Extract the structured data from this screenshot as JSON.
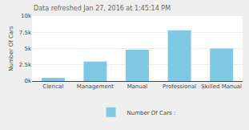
{
  "chart_data": {
    "type": "bar",
    "annotations": [
      "Data refreshed Jan 27, 2016 at 1:45:14 PM"
    ],
    "categories": [
      "Clerical",
      "Management",
      "Manual",
      "Professional",
      "Skilled Manual"
    ],
    "series": [
      {
        "name": "Number Of Cars :",
        "color": "#7EC8E3",
        "values": [
          500,
          3000,
          4800,
          7800,
          5000
        ]
      }
    ],
    "ylabel": "Number Of Cars",
    "ylim": [
      0,
      10000
    ],
    "yticks": [
      {
        "value": 0,
        "label": "0k"
      },
      {
        "value": 2500,
        "label": "2.5k"
      },
      {
        "value": 5000,
        "label": "5k"
      },
      {
        "value": 7500,
        "label": "7.5k"
      },
      {
        "value": 10000,
        "label": "10k"
      }
    ],
    "grid": true,
    "legend": "bottom"
  }
}
